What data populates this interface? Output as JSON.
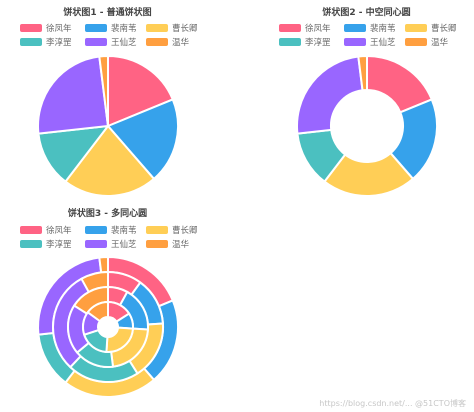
{
  "colors": [
    "#ff6384",
    "#36a2eb",
    "#ffce56",
    "#4bc0c0",
    "#9966ff",
    "#ff9f40"
  ],
  "watermark": "https://blog.csdn.net/... @51CTO博客",
  "chart_data": [
    {
      "type": "pie",
      "title": "饼状图1 - 普通饼状图",
      "categories": [
        "徐凤年",
        "裴南苇",
        "曹长卿",
        "李淳罡",
        "王仙芝",
        "温华"
      ],
      "values": [
        19,
        20,
        22,
        13,
        25,
        2
      ]
    },
    {
      "type": "pie",
      "variant": "doughnut",
      "title": "饼状图2 - 中空同心圆",
      "categories": [
        "徐凤年",
        "裴南苇",
        "曹长卿",
        "李淳罡",
        "王仙芝",
        "温华"
      ],
      "values": [
        19,
        20,
        22,
        13,
        25,
        2
      ]
    },
    {
      "type": "pie",
      "variant": "concentric",
      "title": "饼状图3 - 多同心圆",
      "categories": [
        "徐凤年",
        "裴南苇",
        "曹长卿",
        "李淳罡",
        "王仙芝",
        "温华"
      ],
      "series": [
        {
          "values": [
            19,
            20,
            22,
            13,
            25,
            2
          ]
        },
        {
          "values": [
            10,
            14,
            17,
            21,
            30,
            8
          ]
        },
        {
          "values": [
            8,
            18,
            22,
            16,
            20,
            16
          ]
        },
        {
          "values": [
            16,
            10,
            25,
            19,
            15,
            15
          ]
        }
      ]
    }
  ]
}
